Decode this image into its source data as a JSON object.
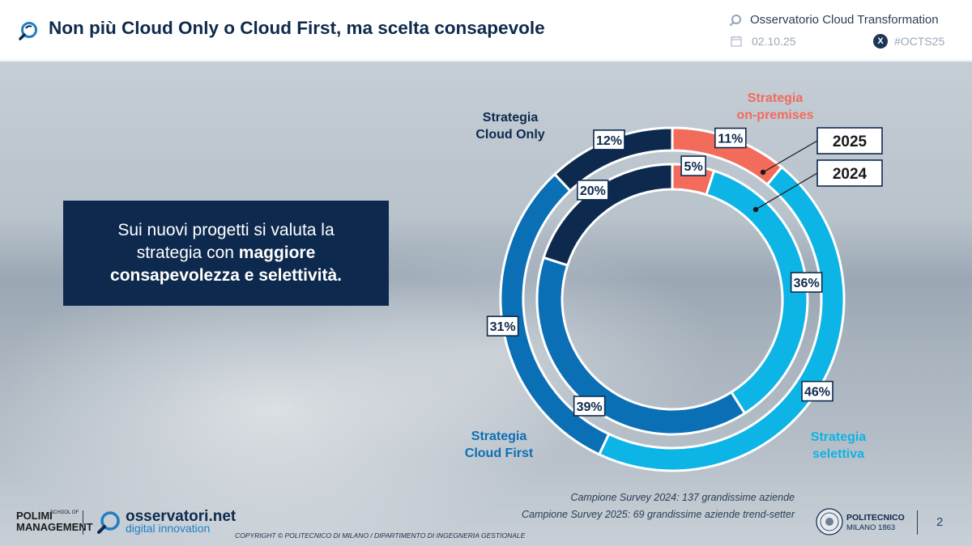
{
  "header": {
    "title": "Non più Cloud Only o Cloud First, ma scelta consapevole",
    "observatory": "Osservatorio Cloud Transformation",
    "date": "02.10.25",
    "hashtag": "#OCTS25"
  },
  "callout": {
    "line1": "Sui nuovi progetti si valuta la",
    "line2_prefix": "strategia con ",
    "line2_bold": "maggiore",
    "line3_bold": "consapevolezza e selettività."
  },
  "chart_data": {
    "type": "pie",
    "subtype": "nested-donut",
    "ring_labels": [
      "2025",
      "2024"
    ],
    "categories": [
      {
        "name": "Strategia on-premises",
        "line1": "Strategia",
        "line2": "on-premises",
        "color": "#f26b5b"
      },
      {
        "name": "Strategia selettiva",
        "line1": "Strategia",
        "line2": "selettiva",
        "color": "#0db4e6"
      },
      {
        "name": "Strategia Cloud First",
        "line1": "Strategia",
        "line2": "Cloud First",
        "color": "#0b6fb5"
      },
      {
        "name": "Strategia Cloud Only",
        "line1": "Strategia",
        "line2": "Cloud Only",
        "color": "#0d2a4e"
      }
    ],
    "series": [
      {
        "name": "2025",
        "ring": "outer",
        "values": [
          11,
          46,
          31,
          12
        ]
      },
      {
        "name": "2024",
        "ring": "inner",
        "values": [
          5,
          36,
          39,
          20
        ]
      }
    ],
    "value_suffix": "%"
  },
  "footer": {
    "sample_2024": "Campione Survey 2024: 137 grandissime aziende",
    "sample_2025": "Campione Survey 2025: 69 grandissime aziende trend-setter",
    "copyright": "COPYRIGHT © POLITECNICO DI MILANO / DIPARTIMENTO DI INGEGNERIA GESTIONALE",
    "polimi_line1": "POLIMI",
    "polimi_line2": "MANAGEMENT",
    "polimi_sub": "SCHOOL OF",
    "oss_name": "osservatori.net",
    "oss_sub": "digital innovation",
    "pm_name": "POLITECNICO",
    "pm_sub": "MILANO 1863",
    "page_number": "2"
  }
}
